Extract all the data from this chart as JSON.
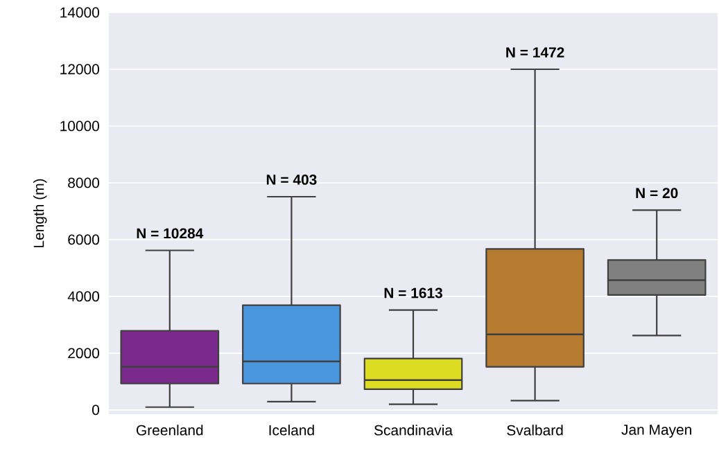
{
  "chart_data": {
    "type": "box",
    "categories": [
      "Greenland",
      "Iceland",
      "Scandinavia",
      "Svalbard",
      "Jan Mayen"
    ],
    "boxes": [
      {
        "low": 100,
        "q1": 930,
        "median": 1520,
        "q3": 2790,
        "high": 5620
      },
      {
        "low": 290,
        "q1": 930,
        "median": 1710,
        "q3": 3690,
        "high": 7510
      },
      {
        "low": 200,
        "q1": 730,
        "median": 1050,
        "q3": 1810,
        "high": 3520
      },
      {
        "low": 330,
        "q1": 1520,
        "median": 2660,
        "q3": 5670,
        "high": 12000
      },
      {
        "low": 2620,
        "q1": 4050,
        "median": 4570,
        "q3": 5280,
        "high": 7040
      }
    ],
    "colors": [
      "#7a2a8a",
      "#4a96dc",
      "#dcdc22",
      "#b57b30",
      "#808080"
    ],
    "ylabel": "Length (m)",
    "ylim": [
      -150,
      14000
    ],
    "yticks": [
      0,
      2000,
      4000,
      6000,
      8000,
      10000,
      12000,
      14000
    ],
    "grid": "y",
    "annotations": [
      "N = 10284",
      "N = 403",
      "N = 1613",
      "N = 1472",
      "N = 20"
    ]
  }
}
